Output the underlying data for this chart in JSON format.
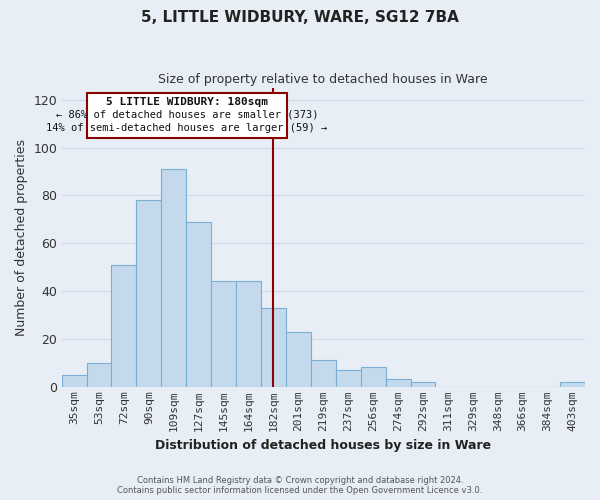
{
  "title": "5, LITTLE WIDBURY, WARE, SG12 7BA",
  "subtitle": "Size of property relative to detached houses in Ware",
  "xlabel": "Distribution of detached houses by size in Ware",
  "ylabel": "Number of detached properties",
  "categories": [
    "35sqm",
    "53sqm",
    "72sqm",
    "90sqm",
    "109sqm",
    "127sqm",
    "145sqm",
    "164sqm",
    "182sqm",
    "201sqm",
    "219sqm",
    "237sqm",
    "256sqm",
    "274sqm",
    "292sqm",
    "311sqm",
    "329sqm",
    "348sqm",
    "366sqm",
    "384sqm",
    "403sqm"
  ],
  "values": [
    5,
    10,
    51,
    78,
    91,
    69,
    44,
    44,
    33,
    23,
    11,
    7,
    8,
    3,
    2,
    0,
    0,
    0,
    0,
    0,
    2
  ],
  "bar_color": "#c5d9ed",
  "bar_edge_color": "#7aafd4",
  "ref_line_index": 8,
  "ref_line_color": "#8b0000",
  "ylim": [
    0,
    125
  ],
  "yticks": [
    0,
    20,
    40,
    60,
    80,
    100,
    120
  ],
  "annotation_title": "5 LITTLE WIDBURY: 180sqm",
  "annotation_line1": "← 86% of detached houses are smaller (373)",
  "annotation_line2": "14% of semi-detached houses are larger (59) →",
  "annotation_box_color": "#ffffff",
  "annotation_box_edge": "#8b0000",
  "footer_line1": "Contains HM Land Registry data © Crown copyright and database right 2024.",
  "footer_line2": "Contains public sector information licensed under the Open Government Licence v3.0.",
  "background_color": "#e8eef5",
  "grid_color": "#d0dae8",
  "title_fontsize": 11,
  "subtitle_fontsize": 9,
  "xlabel_fontsize": 9,
  "ylabel_fontsize": 9,
  "tick_fontsize": 8
}
